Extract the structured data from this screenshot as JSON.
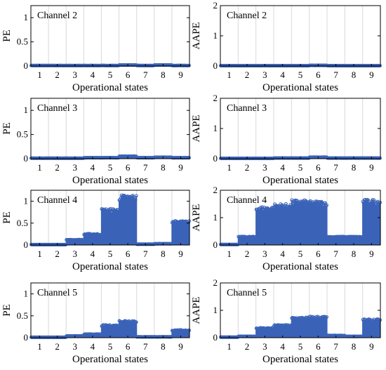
{
  "figure": {
    "xlabel": "Operational states",
    "series_color": "#3a63b8"
  },
  "chart_data": [
    {
      "type": "stem",
      "title": "Channel 2",
      "xlabel": "Operational states",
      "ylabel": "PE",
      "ylim": [
        0,
        1.25
      ],
      "yticks": [
        0,
        0.5,
        1
      ],
      "xticks": [
        1,
        2,
        3,
        4,
        5,
        6,
        7,
        8,
        9
      ],
      "grid": "vertical",
      "categories": [
        1,
        2,
        3,
        4,
        5,
        6,
        7,
        8,
        9
      ],
      "values": [
        0.01,
        0.01,
        0.01,
        0.01,
        0.01,
        0.02,
        0.01,
        0.02,
        0.01
      ]
    },
    {
      "type": "stem",
      "title": "Channel 2",
      "xlabel": "Operational states",
      "ylabel": "AAPE",
      "ylim": [
        0,
        2
      ],
      "yticks": [
        0,
        1,
        2
      ],
      "xticks": [
        1,
        2,
        3,
        4,
        5,
        6,
        7,
        8,
        9
      ],
      "grid": "vertical",
      "categories": [
        1,
        2,
        3,
        4,
        5,
        6,
        7,
        8,
        9
      ],
      "values": [
        0.01,
        0.01,
        0.01,
        0.01,
        0.01,
        0.02,
        0.01,
        0.01,
        0.01
      ]
    },
    {
      "type": "stem",
      "title": "Channel 3",
      "xlabel": "Operational states",
      "ylabel": "PE",
      "ylim": [
        0,
        1.25
      ],
      "yticks": [
        0,
        0.5,
        1
      ],
      "xticks": [
        1,
        2,
        3,
        4,
        5,
        6,
        7,
        8,
        9
      ],
      "grid": "vertical",
      "categories": [
        1,
        2,
        3,
        4,
        5,
        6,
        7,
        8,
        9
      ],
      "values": [
        0.01,
        0.01,
        0.01,
        0.02,
        0.02,
        0.05,
        0.02,
        0.03,
        0.02
      ]
    },
    {
      "type": "stem",
      "title": "Channel 3",
      "xlabel": "Operational states",
      "ylabel": "AAPE",
      "ylim": [
        0,
        2
      ],
      "yticks": [
        0,
        1,
        2
      ],
      "xticks": [
        1,
        2,
        3,
        4,
        5,
        6,
        7,
        8,
        9
      ],
      "grid": "vertical",
      "categories": [
        1,
        2,
        3,
        4,
        5,
        6,
        7,
        8,
        9
      ],
      "values": [
        0.01,
        0.01,
        0.01,
        0.02,
        0.02,
        0.05,
        0.02,
        0.02,
        0.02
      ]
    },
    {
      "type": "stem",
      "title": "Channel 4",
      "xlabel": "Operational states",
      "ylabel": "PE",
      "ylim": [
        0,
        1.25
      ],
      "yticks": [
        0,
        0.5,
        1
      ],
      "xticks": [
        1,
        2,
        3,
        4,
        5,
        6,
        7,
        8,
        9
      ],
      "grid": "vertical",
      "categories": [
        1,
        2,
        3,
        4,
        5,
        6,
        7,
        8,
        9
      ],
      "values": [
        0.01,
        0.01,
        0.12,
        0.25,
        0.8,
        1.1,
        0.02,
        0.03,
        0.53
      ]
    },
    {
      "type": "stem",
      "title": "Channel 4",
      "xlabel": "Operational states",
      "ylabel": "AAPE",
      "ylim": [
        0,
        2
      ],
      "yticks": [
        0,
        1,
        2
      ],
      "xticks": [
        1,
        2,
        3,
        4,
        5,
        6,
        7,
        8,
        9
      ],
      "grid": "vertical",
      "categories": [
        1,
        2,
        3,
        4,
        5,
        6,
        7,
        8,
        9
      ],
      "values": [
        0.02,
        0.3,
        1.35,
        1.45,
        1.58,
        1.55,
        0.3,
        0.3,
        1.6
      ]
    },
    {
      "type": "stem",
      "title": "Channel 5",
      "xlabel": "Operational states",
      "ylabel": "PE",
      "ylim": [
        0,
        1.25
      ],
      "yticks": [
        0,
        0.5,
        1
      ],
      "xticks": [
        1,
        2,
        3,
        4,
        5,
        6,
        7,
        8,
        9
      ],
      "grid": "vertical",
      "categories": [
        1,
        2,
        3,
        4,
        5,
        6,
        7,
        8,
        9
      ],
      "values": [
        0.01,
        0.01,
        0.04,
        0.08,
        0.28,
        0.38,
        0.02,
        0.02,
        0.17
      ]
    },
    {
      "type": "stem",
      "title": "Channel 5",
      "xlabel": "Operational states",
      "ylabel": "AAPE",
      "ylim": [
        0,
        2
      ],
      "yticks": [
        0,
        1,
        2
      ],
      "xticks": [
        1,
        2,
        3,
        4,
        5,
        6,
        7,
        8,
        9
      ],
      "grid": "vertical",
      "categories": [
        1,
        2,
        3,
        4,
        5,
        6,
        7,
        8,
        9
      ],
      "values": [
        0.02,
        0.05,
        0.35,
        0.45,
        0.72,
        0.75,
        0.08,
        0.05,
        0.65
      ]
    }
  ]
}
